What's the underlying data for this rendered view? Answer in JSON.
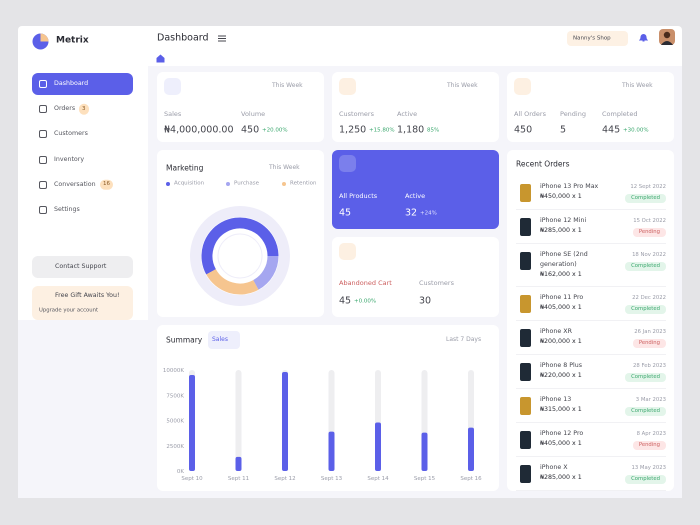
{
  "sidebar": {
    "brand": "Metrix",
    "nav": [
      {
        "label": "Dashboard"
      },
      {
        "label": "Orders",
        "badge": "3"
      },
      {
        "label": "Customers"
      },
      {
        "label": "Inventory"
      },
      {
        "label": "Conversation",
        "badge": "16"
      },
      {
        "label": "Settings"
      }
    ],
    "support": "Contact Support",
    "promo": {
      "title": "Free Gift Awaits You!",
      "link": "Upgrade your account"
    }
  },
  "header": {
    "title": "Dashboard",
    "shop": "Nanny's Shop"
  },
  "stats": [
    {
      "period": "This Week",
      "metrics": [
        {
          "label": "Sales",
          "value": "₦4,000,000.00"
        },
        {
          "label": "Volume",
          "value": "450",
          "change": "+20.00%"
        }
      ]
    },
    {
      "period": "This Week",
      "metrics": [
        {
          "label": "Customers",
          "value": "1,250",
          "change": "+15.80%"
        },
        {
          "label": "Active",
          "value": "1,180",
          "change": "85%"
        }
      ]
    },
    {
      "period": "This Week",
      "metrics": [
        {
          "label": "All Orders",
          "value": "450"
        },
        {
          "label": "Pending",
          "value": "5"
        },
        {
          "label": "Completed",
          "value": "445",
          "change": "+30.00%"
        }
      ]
    }
  ],
  "marketing": {
    "title": "Marketing",
    "period": "This Week",
    "series": [
      {
        "name": "Acquisition",
        "color": "#5b5fe8",
        "value": 58
      },
      {
        "name": "Purchase",
        "color": "#a5a6f0",
        "value": 17
      },
      {
        "name": "Retention",
        "color": "#f6c58f",
        "value": 25
      }
    ]
  },
  "products": {
    "metrics": [
      {
        "label": "All Products",
        "value": "45"
      },
      {
        "label": "Active",
        "value": "32",
        "change": "+24%"
      }
    ]
  },
  "cart": {
    "metrics": [
      {
        "label": "Abandoned Cart",
        "value": "45",
        "change": "+0.00%"
      },
      {
        "label": "Customers",
        "value": "30"
      }
    ]
  },
  "summary": {
    "title": "Summary",
    "filter": "Sales",
    "period": "Last 7 Days",
    "chart_data": {
      "type": "bar",
      "categories": [
        "Sept 10",
        "Sept 11",
        "Sept 12",
        "Sept 13",
        "Sept 14",
        "Sept 15",
        "Sept 16"
      ],
      "values": [
        9500000,
        1400000,
        9800000,
        3900000,
        4800000,
        3800000,
        4300000
      ],
      "color": "#5b5fe8",
      "ylim": [
        0,
        10000000
      ],
      "yticks": [
        {
          "value": 0,
          "label": "0K"
        },
        {
          "value": 2500000,
          "label": "2500K"
        },
        {
          "value": 5000000,
          "label": "5000K"
        },
        {
          "value": 7500000,
          "label": "7500K"
        },
        {
          "value": 10000000,
          "label": "10000K"
        }
      ]
    }
  },
  "recent_orders": {
    "title": "Recent Orders",
    "orders": [
      {
        "name": "iPhone 13 Pro Max",
        "price": "₦450,000 x 1",
        "date": "12 Sept 2022",
        "status": "Completed"
      },
      {
        "name": "iPhone 12 Mini",
        "price": "₦285,000 x 1",
        "date": "15 Oct 2022",
        "status": "Pending"
      },
      {
        "name": "iPhone SE (2nd generation)",
        "price": "₦162,000 x 1",
        "date": "18 Nov 2022",
        "status": "Completed"
      },
      {
        "name": "iPhone 11 Pro",
        "price": "₦405,000 x 1",
        "date": "22 Dec 2022",
        "status": "Completed"
      },
      {
        "name": "iPhone XR",
        "price": "₦200,000 x 1",
        "date": "26 Jan 2023",
        "status": "Pending"
      },
      {
        "name": "iPhone 8 Plus",
        "price": "₦220,000 x 1",
        "date": "28 Feb 2023",
        "status": "Completed"
      },
      {
        "name": "iPhone 13",
        "price": "₦315,000 x 1",
        "date": "3 Mar 2023",
        "status": "Completed"
      },
      {
        "name": "iPhone 12 Pro",
        "price": "₦405,000 x 1",
        "date": "8 Apr 2023",
        "status": "Pending"
      },
      {
        "name": "iPhone X",
        "price": "₦285,000 x 1",
        "date": "13 May 2023",
        "status": "Completed"
      }
    ]
  }
}
